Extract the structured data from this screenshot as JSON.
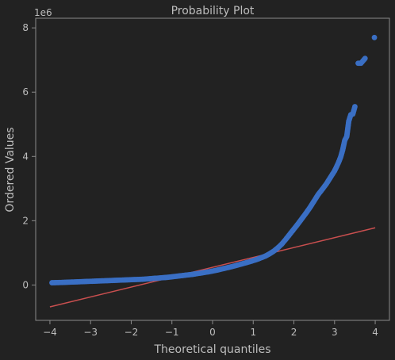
{
  "chart_data": {
    "type": "scatter",
    "title": "Probability Plot",
    "xlabel": "Theoretical quantiles",
    "ylabel": "Ordered Values",
    "y_scale_label": "1e6",
    "xlim": [
      -4.35,
      4.35
    ],
    "ylim": [
      -1.1,
      8.3
    ],
    "x_ticks": [
      -4,
      -3,
      -2,
      -1,
      0,
      1,
      2,
      3,
      4
    ],
    "x_tick_labels": [
      "−4",
      "−3",
      "−2",
      "−1",
      "0",
      "1",
      "2",
      "3",
      "4"
    ],
    "y_ticks": [
      0,
      2,
      4,
      6,
      8
    ],
    "y_tick_labels": [
      "0",
      "2",
      "4",
      "6",
      "8"
    ],
    "colors": {
      "background": "#222222",
      "axes_face": "#222222",
      "frame": "#8a8a8a",
      "text": "#bdbdbd",
      "points": "#3a6fc4",
      "fit_line": "#c94f4f"
    },
    "series": [
      {
        "name": "ordered values",
        "kind": "points",
        "x": [
          -3.95,
          -3.7,
          -3.5,
          -3.3,
          -3.1,
          -2.9,
          -2.7,
          -2.5,
          -2.3,
          -2.1,
          -1.9,
          -1.7,
          -1.5,
          -1.3,
          -1.1,
          -0.9,
          -0.7,
          -0.5,
          -0.3,
          -0.1,
          0.1,
          0.3,
          0.5,
          0.7,
          0.9,
          1.1,
          1.3,
          1.4,
          1.5,
          1.6,
          1.7,
          1.8,
          1.9,
          2.0,
          2.1,
          2.2,
          2.3,
          2.4,
          2.5,
          2.6,
          2.7,
          2.8,
          2.9,
          3.0,
          3.05,
          3.1,
          3.15,
          3.2,
          3.25,
          3.3,
          3.35,
          3.4,
          3.45,
          3.5,
          3.58,
          3.65,
          3.75,
          3.98
        ],
        "y": [
          0.07,
          0.08,
          0.09,
          0.1,
          0.11,
          0.12,
          0.13,
          0.14,
          0.15,
          0.16,
          0.17,
          0.18,
          0.2,
          0.22,
          0.24,
          0.27,
          0.3,
          0.33,
          0.37,
          0.41,
          0.46,
          0.52,
          0.58,
          0.65,
          0.72,
          0.8,
          0.9,
          0.97,
          1.05,
          1.15,
          1.27,
          1.42,
          1.58,
          1.74,
          1.9,
          2.07,
          2.24,
          2.42,
          2.62,
          2.82,
          2.98,
          3.15,
          3.35,
          3.55,
          3.68,
          3.82,
          3.98,
          4.2,
          4.5,
          4.62,
          5.1,
          5.3,
          5.32,
          5.55,
          6.9,
          6.9,
          7.05,
          7.7
        ]
      },
      {
        "name": "fit",
        "kind": "line",
        "x": [
          -4,
          4
        ],
        "y": [
          -0.68,
          1.78
        ]
      }
    ]
  }
}
